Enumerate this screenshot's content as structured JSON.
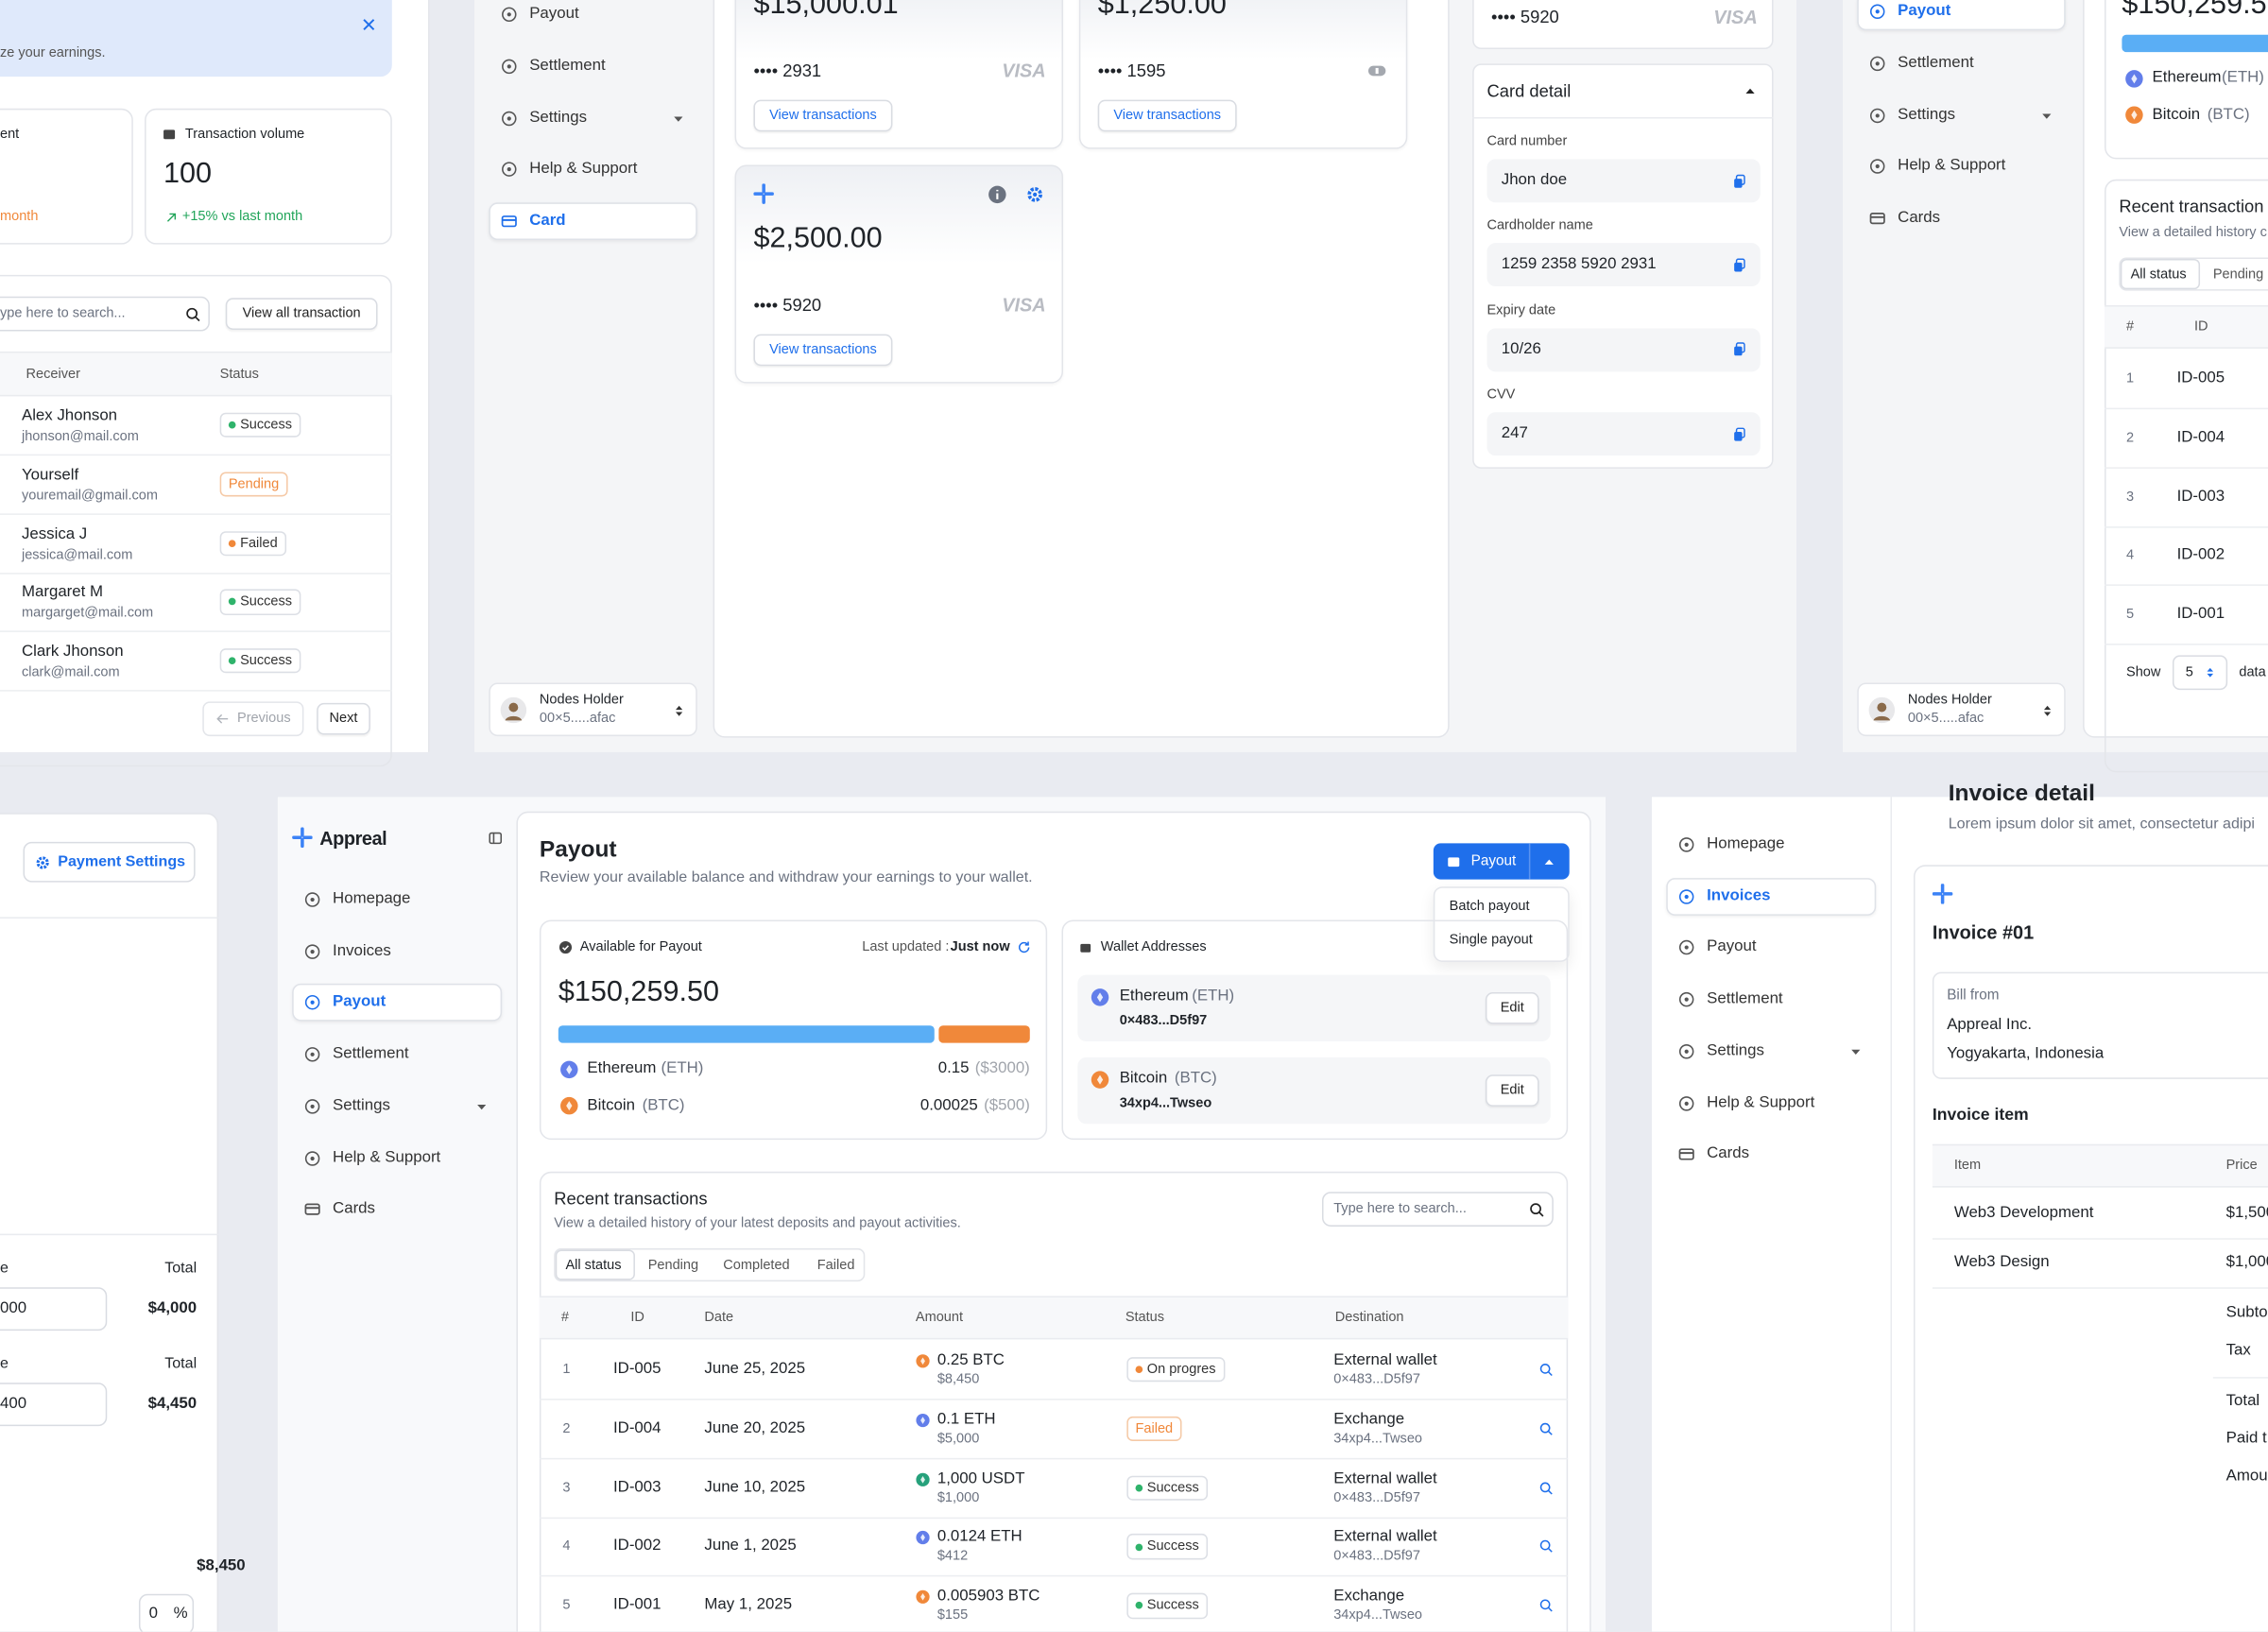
{
  "earnings": {
    "banner": "ze your earnings.",
    "stat_left": {
      "label": "ent",
      "note": "month"
    },
    "stat_right": {
      "label": "Transaction volume",
      "value": "100",
      "note": "+15% vs last month"
    },
    "search": "ype here to search...",
    "view_all": "View all transaction",
    "headers": [
      "Receiver",
      "Status"
    ],
    "rows": [
      [
        "Alex Jhonson",
        "jhonson@mail.com",
        "Success"
      ],
      [
        "Yourself",
        "youremail@gmail.com",
        "Pending"
      ],
      [
        "Jessica J",
        "jessica@mail.com",
        "Failed"
      ],
      [
        "Margaret M",
        "margarget@mail.com",
        "Success"
      ],
      [
        "Clark Jhonson",
        "clark@mail.com",
        "Success"
      ]
    ],
    "pagination": [
      "Previous",
      "Next"
    ]
  },
  "cards_page": {
    "nav": [
      "Payout",
      "Settlement",
      "Settings",
      "Help & Support",
      "Card"
    ],
    "profile": {
      "name": "Nodes Holder",
      "address": "00×5.....afac"
    },
    "cards": [
      {
        "balance": "$15,000.01",
        "number": "•••• 2931",
        "brand": "VISA",
        "action": "View transactions"
      },
      {
        "balance": "$1,250.00",
        "number": "•••• 1595",
        "action": "View transactions"
      },
      {
        "balance": "$2,500.00",
        "number": "•••• 5920",
        "brand": "VISA",
        "action": "View transactions"
      }
    ],
    "side_card": {
      "number": "•••• 5920",
      "brand": "VISA"
    },
    "card_detail": {
      "title": "Card detail",
      "fields": [
        [
          "Card number",
          "Jhon doe"
        ],
        [
          "Cardholder name",
          "1259  2358  5920  2931"
        ],
        [
          "Expiry date",
          "10/26"
        ],
        [
          "CVV",
          "247"
        ]
      ]
    }
  },
  "payout_mini": {
    "nav": [
      "Payout",
      "Settlement",
      "Settings",
      "Help & Support",
      "Cards"
    ],
    "profile": {
      "name": "Nodes Holder",
      "address": "00×5.....afac"
    },
    "balance": "$150,259.5",
    "assets": [
      [
        "Ethereum",
        "(ETH)"
      ],
      [
        "Bitcoin",
        "(BTC)"
      ]
    ],
    "recent_title": "Recent transaction",
    "recent_subtitle": "View a detailed history c",
    "tabs": [
      "All status",
      "Pending"
    ],
    "headers": [
      "#",
      "ID"
    ],
    "rows": [
      [
        "1",
        "ID-005"
      ],
      [
        "2",
        "ID-004"
      ],
      [
        "3",
        "ID-003"
      ],
      [
        "4",
        "ID-002"
      ],
      [
        "5",
        "ID-001"
      ]
    ],
    "show_label": "Show",
    "page_size": "5",
    "after": "data"
  },
  "payment_settings": {
    "button": "Payment Settings",
    "lines": [
      {
        "label": "e",
        "total_label": "Total",
        "input": "000",
        "total": "$4,000"
      },
      {
        "label": "e",
        "total_label": "Total",
        "input": "400",
        "total": "$4,450"
      }
    ],
    "sum": "$8,450",
    "percent_input": "0",
    "percent_unit": "%"
  },
  "payout_page": {
    "brand": "Appreal",
    "nav": [
      "Homepage",
      "Invoices",
      "Payout",
      "Settlement",
      "Settings",
      "Help & Support",
      "Cards"
    ],
    "title": "Payout",
    "subtitle": "Review your available balance and withdraw your earnings to your wallet.",
    "payout_button": "Payout",
    "payout_menu": [
      "Batch payout",
      "Single payout"
    ],
    "available": {
      "title": "Available for Payout",
      "updated_label": "Last updated :",
      "updated_value": "Just now",
      "balance": "$150,259.50",
      "assets": [
        {
          "name": "Ethereum",
          "ticker": "(ETH)",
          "amount": "0.15",
          "fiat": "($3000)"
        },
        {
          "name": "Bitcoin",
          "ticker": "(BTC)",
          "amount": "0.00025",
          "fiat": "($500)"
        }
      ]
    },
    "wallets": {
      "title": "Wallet Addresses",
      "items": [
        {
          "name": "Ethereum",
          "ticker": "(ETH)",
          "address": "0×483...D5f97",
          "action": "Edit"
        },
        {
          "name": "Bitcoin",
          "ticker": "(BTC)",
          "address": "34xp4...Twseo",
          "action": "Edit"
        }
      ]
    },
    "recent": {
      "title": "Recent transactions",
      "subtitle": "View a detailed history of your latest deposits and payout activities.",
      "search": "Type here to search...",
      "tabs": [
        "All status",
        "Pending",
        "Completed",
        "Failed"
      ],
      "headers": [
        "#",
        "ID",
        "Date",
        "Amount",
        "Status",
        "Destination"
      ],
      "rows": [
        [
          "1",
          "ID-005",
          "June 25, 2025",
          "0.25 BTC",
          "$8,450",
          "On progres",
          "External wallet",
          "0×483...D5f97"
        ],
        [
          "2",
          "ID-004",
          "June 20, 2025",
          "0.1 ETH",
          "$5,000",
          "Failed",
          "Exchange",
          "34xp4...Twseo"
        ],
        [
          "3",
          "ID-003",
          "June 10, 2025",
          "1,000 USDT",
          "$1,000",
          "Success",
          "External wallet",
          "0×483...D5f97"
        ],
        [
          "4",
          "ID-002",
          "June 1, 2025",
          "0.0124 ETH",
          "$412",
          "Success",
          "External wallet",
          "0×483...D5f97"
        ],
        [
          "5",
          "ID-001",
          "May 1, 2025",
          "0.005903 BTC",
          "$155",
          "Success",
          "Exchange",
          "34xp4...Twseo"
        ]
      ]
    }
  },
  "invoice_page": {
    "nav": [
      "Homepage",
      "Invoices",
      "Payout",
      "Settlement",
      "Settings",
      "Help & Support",
      "Cards"
    ],
    "title": "Invoice detail",
    "subtitle": "Lorem ipsum dolor sit amet, consectetur adipi",
    "invoice_no": "Invoice #01",
    "bill_from": {
      "label": "Bill from",
      "company": "Appreal Inc.",
      "city": "Yogyakarta, Indonesia"
    },
    "items_title": "Invoice item",
    "headers": [
      "Item",
      "Price"
    ],
    "items": [
      [
        "Web3 Development",
        "$1,500"
      ],
      [
        "Web3 Design",
        "$1,000"
      ]
    ],
    "summary": [
      "Subto",
      "Tax",
      "Total",
      "Paid t",
      "Amou"
    ]
  }
}
